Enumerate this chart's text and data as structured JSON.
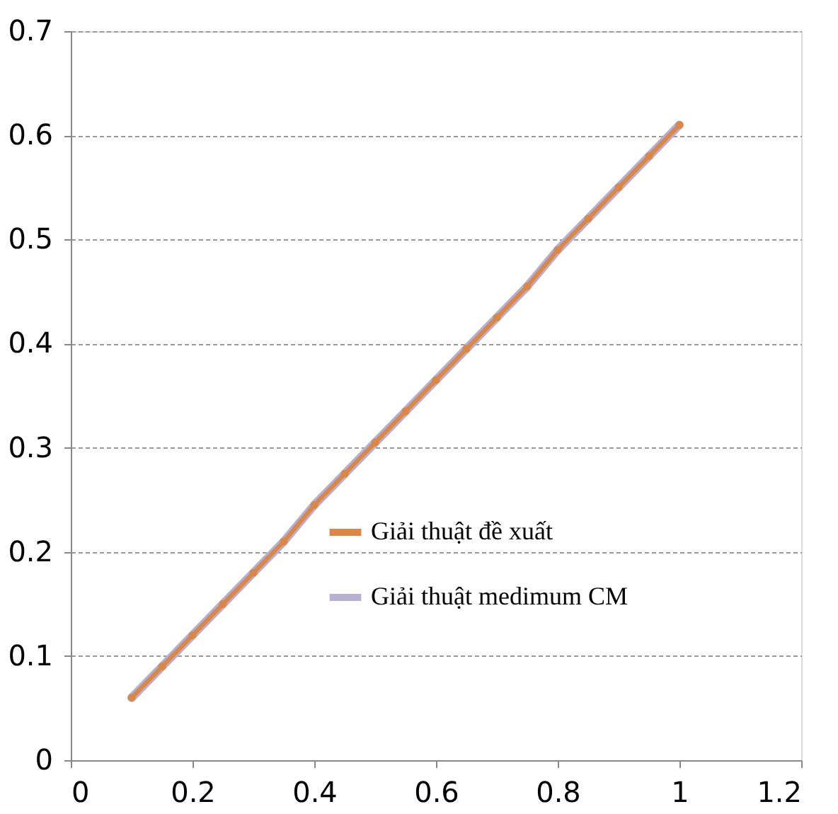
{
  "chart_data": {
    "type": "line",
    "x": [
      0.1,
      0.15,
      0.2,
      0.25,
      0.3,
      0.35,
      0.4,
      0.45,
      0.5,
      0.55,
      0.6,
      0.65,
      0.7,
      0.75,
      0.8,
      0.85,
      0.9,
      0.95,
      1.0
    ],
    "series": [
      {
        "name": "Giải thuật đề xuất",
        "color": "#d9884a",
        "marker": "circle",
        "values": [
          0.06,
          0.09,
          0.12,
          0.15,
          0.18,
          0.21,
          0.245,
          0.275,
          0.305,
          0.335,
          0.365,
          0.395,
          0.425,
          0.455,
          0.49,
          0.52,
          0.55,
          0.58,
          0.61
        ]
      },
      {
        "name": "Giải thuật medimum CM",
        "color": "#b8aed0",
        "marker": "none",
        "values": [
          0.06,
          0.09,
          0.12,
          0.15,
          0.18,
          0.21,
          0.245,
          0.275,
          0.305,
          0.335,
          0.365,
          0.395,
          0.425,
          0.455,
          0.49,
          0.52,
          0.55,
          0.58,
          0.61
        ]
      }
    ],
    "xlim": [
      0,
      1.2
    ],
    "xticks": [
      0,
      0.2,
      0.4,
      0.6,
      0.8,
      1,
      1.2
    ],
    "ylim": [
      0,
      0.7
    ],
    "yticks": [
      0,
      0.1,
      0.2,
      0.3,
      0.4,
      0.5,
      0.6,
      0.7
    ],
    "grid": "y",
    "legend": "right"
  }
}
